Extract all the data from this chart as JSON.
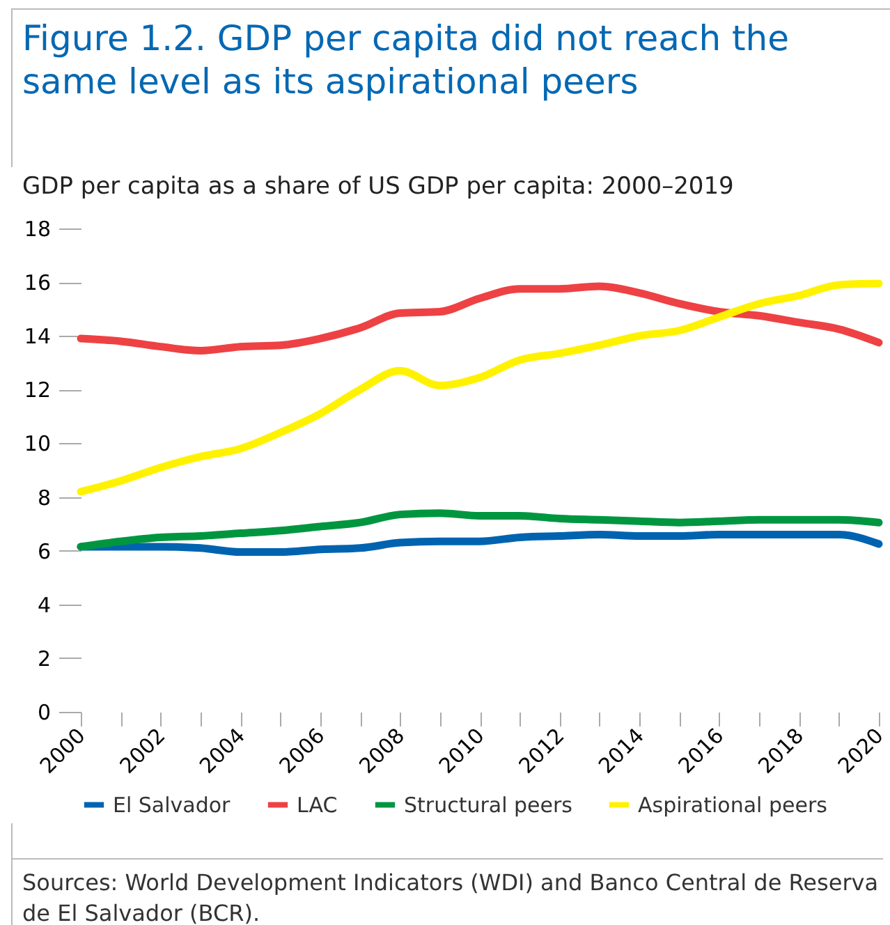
{
  "chart_data": {
    "type": "line",
    "title": "Figure 1.2. GDP per capita did not reach the same level as its aspirational peers",
    "subtitle": "GDP per capita as a share of US GDP per capita: 2000–2019",
    "annotations": [
      "Sources: World Development Indicators (WDI) and Banco Central de Reserva de El Salvador (BCR)."
    ],
    "x": [
      2000,
      2001,
      2002,
      2003,
      2004,
      2005,
      2006,
      2007,
      2008,
      2009,
      2010,
      2011,
      2012,
      2013,
      2014,
      2015,
      2016,
      2017,
      2018,
      2019,
      2020
    ],
    "series": [
      {
        "name": "El Salvador",
        "color": "#0063b0",
        "values": [
          6.15,
          6.15,
          6.15,
          6.1,
          5.95,
          5.95,
          6.05,
          6.1,
          6.3,
          6.35,
          6.35,
          6.5,
          6.55,
          6.6,
          6.55,
          6.55,
          6.6,
          6.6,
          6.6,
          6.6,
          6.25
        ]
      },
      {
        "name": "LAC",
        "color": "#ee4144",
        "values": [
          13.9,
          13.8,
          13.6,
          13.45,
          13.6,
          13.65,
          13.9,
          14.3,
          14.85,
          14.9,
          15.4,
          15.75,
          15.75,
          15.85,
          15.6,
          15.2,
          14.9,
          14.75,
          14.5,
          14.25,
          13.75
        ]
      },
      {
        "name": "Structural peers",
        "color": "#009640",
        "values": [
          6.15,
          6.35,
          6.5,
          6.55,
          6.65,
          6.75,
          6.9,
          7.05,
          7.35,
          7.4,
          7.3,
          7.3,
          7.2,
          7.15,
          7.1,
          7.05,
          7.1,
          7.15,
          7.15,
          7.15,
          7.05
        ]
      },
      {
        "name": "Aspirational peers",
        "color": "#fff200",
        "values": [
          8.2,
          8.6,
          9.1,
          9.5,
          9.8,
          10.4,
          11.1,
          12.0,
          12.7,
          12.15,
          12.45,
          13.1,
          13.35,
          13.65,
          14.0,
          14.2,
          14.7,
          15.2,
          15.5,
          15.9,
          15.95
        ]
      }
    ],
    "xlim": [
      2000,
      2020
    ],
    "xticks": [
      2000,
      {
        "value": 2001,
        "label": null
      },
      2002,
      {
        "value": 2003,
        "label": null
      },
      2004,
      {
        "value": 2005,
        "label": null
      },
      2006,
      {
        "value": 2007,
        "label": null
      },
      2008,
      {
        "value": 2009,
        "label": null
      },
      2010,
      {
        "value": 2011,
        "label": null
      },
      2012,
      {
        "value": 2013,
        "label": null
      },
      2014,
      {
        "value": 2015,
        "label": null
      },
      2016,
      {
        "value": 2017,
        "label": null
      },
      2018,
      {
        "value": 2019,
        "label": null
      },
      2020
    ],
    "ylim": [
      0,
      18
    ],
    "yticks": [
      0,
      2,
      4,
      6,
      8,
      10,
      12,
      14,
      16,
      18
    ],
    "grid": false,
    "legend": "bottom",
    "marker": "none",
    "line_style": "solid"
  }
}
